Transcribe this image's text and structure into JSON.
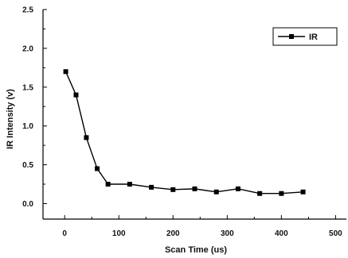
{
  "chart_data": {
    "type": "line",
    "title": "",
    "xlabel": "Scan Time (us)",
    "ylabel": "IR Intensity (v)",
    "xlim": [
      -40,
      520
    ],
    "ylim": [
      -0.2,
      2.5
    ],
    "x_ticks": [
      0,
      100,
      200,
      300,
      400,
      500
    ],
    "y_ticks": [
      0.0,
      0.5,
      1.0,
      1.5,
      2.0,
      2.5
    ],
    "y_tick_labels": [
      "0.0",
      "0.5",
      "1.0",
      "1.5",
      "2.0",
      "2.5"
    ],
    "grid": false,
    "legend_position": "top-right",
    "series": [
      {
        "name": "IR",
        "color": "#000000",
        "marker": "square",
        "x": [
          2,
          21,
          40,
          60,
          80,
          120,
          160,
          200,
          240,
          280,
          320,
          360,
          400,
          440
        ],
        "y": [
          1.7,
          1.4,
          0.85,
          0.45,
          0.25,
          0.25,
          0.21,
          0.18,
          0.19,
          0.15,
          0.19,
          0.13,
          0.13,
          0.15
        ]
      }
    ]
  }
}
